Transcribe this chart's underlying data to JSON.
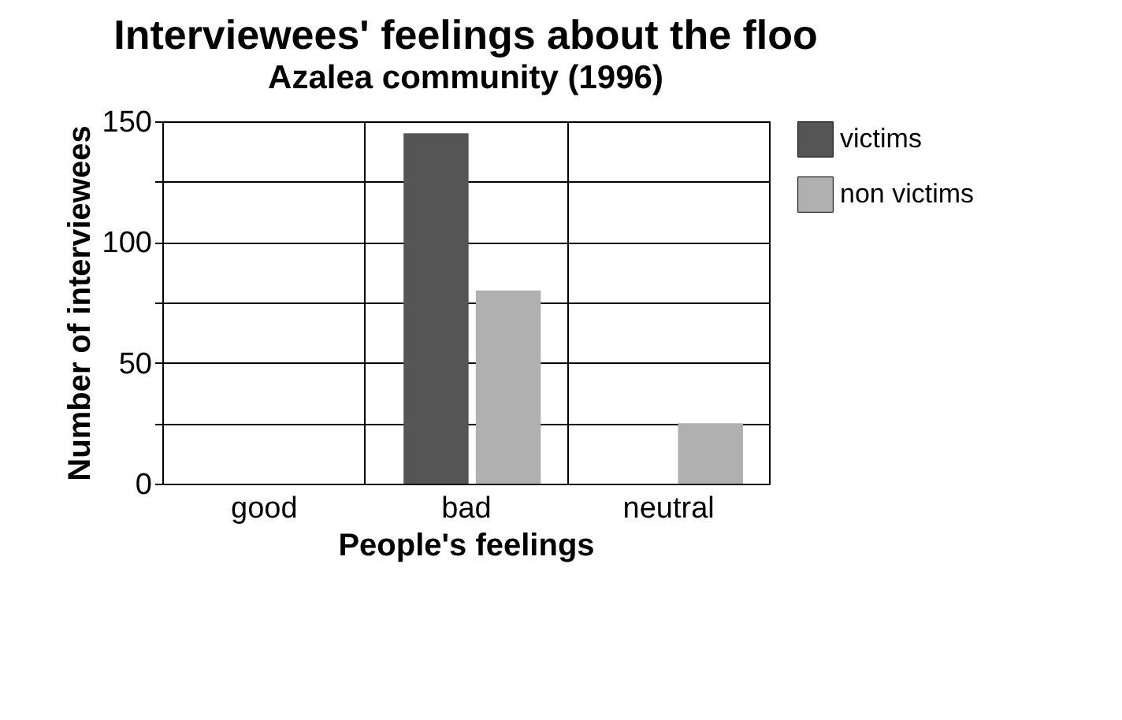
{
  "chart_data": {
    "type": "bar",
    "title": "Interviewees' feelings about the floo",
    "subtitle": "Azalea community (1996)",
    "xlabel": "People's feelings",
    "ylabel": "Number of interviewees",
    "categories": [
      "good",
      "bad",
      "neutral"
    ],
    "series": [
      {
        "name": "victims",
        "color": "#555555",
        "values": [
          0,
          145,
          0
        ]
      },
      {
        "name": "non victims",
        "color": "#b0b0b0",
        "values": [
          0,
          80,
          25
        ]
      }
    ],
    "ylim": [
      0,
      150
    ],
    "yticks": [
      0,
      {
        "value": 25,
        "label": null
      },
      50,
      {
        "value": 75,
        "label": null
      },
      100,
      {
        "value": 125,
        "label": null
      },
      150
    ],
    "grid": true,
    "legend": "right"
  }
}
